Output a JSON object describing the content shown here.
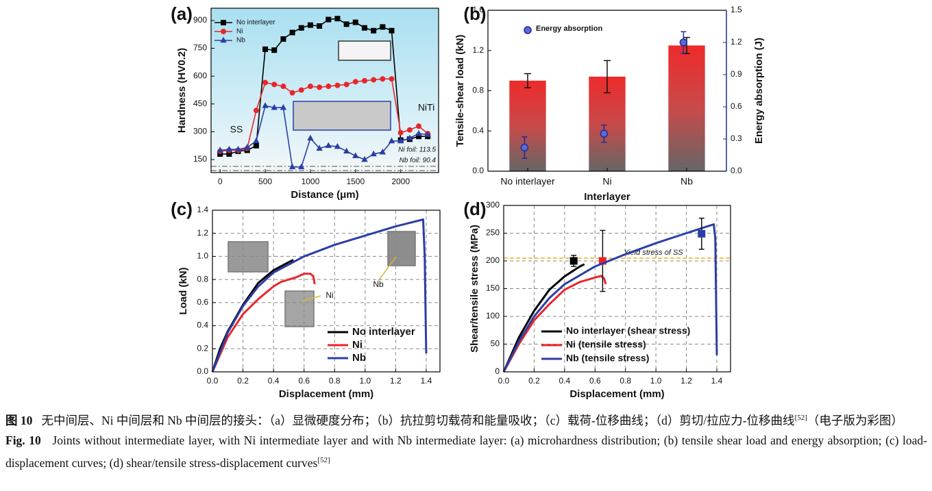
{
  "chart_data": [
    {
      "type": "line",
      "panel_label": "(a)",
      "xlabel": "Distance (μm)",
      "ylabel": "Hardness (HV0.2)",
      "x": [
        0,
        100,
        200,
        300,
        400,
        500,
        600,
        700,
        800,
        900,
        1000,
        1100,
        1200,
        1300,
        1400,
        1500,
        1600,
        1700,
        1800,
        1900,
        2000,
        2100,
        2200,
        2300
      ],
      "series": [
        {
          "name": "No interlayer",
          "color": "#000000",
          "marker": "square",
          "values": [
            180,
            180,
            195,
            200,
            225,
            745,
            740,
            800,
            835,
            860,
            875,
            870,
            905,
            910,
            880,
            890,
            860,
            845,
            865,
            845,
            255,
            260,
            275,
            275
          ]
        },
        {
          "name": "Ni",
          "color": "#e8262a",
          "marker": "circle",
          "values": [
            195,
            200,
            200,
            210,
            415,
            565,
            555,
            545,
            510,
            525,
            545,
            540,
            545,
            550,
            555,
            570,
            575,
            580,
            585,
            585,
            295,
            310,
            330,
            290
          ]
        },
        {
          "name": "Nb",
          "color": "#2a3ea8",
          "marker": "triangle",
          "values": [
            200,
            205,
            205,
            215,
            250,
            440,
            430,
            430,
            110,
            110,
            265,
            210,
            225,
            220,
            195,
            170,
            150,
            180,
            190,
            250,
            250,
            265,
            290,
            285
          ]
        }
      ],
      "xlim": [
        -100,
        2420
      ],
      "ylim": [
        80,
        966
      ],
      "xticks": [
        0,
        500,
        1000,
        1500,
        2000
      ],
      "yticks": [
        150,
        300,
        450,
        600,
        750,
        900
      ],
      "annotations": [
        "SS",
        "NiTi"
      ],
      "reference_lines": [
        {
          "label": "Ni foil: 113.5",
          "value": 113.5
        },
        {
          "label": "Nb foil: 90.4",
          "value": 90.4
        }
      ],
      "legend": "upper left"
    },
    {
      "type": "bar",
      "panel_label": "(b)",
      "xlabel": "Interlayer",
      "ylabel": "Tensile-shear load (kN)",
      "y2label": "Energy absorption (J)",
      "categories": [
        "No interlayer",
        "Ni",
        "Nb"
      ],
      "series": [
        {
          "color": "#e8262a",
          "values": [
            0.9,
            0.94,
            1.25
          ],
          "errors": [
            0.07,
            0.16,
            0.08
          ]
        },
        {
          "name": "Energy absorption",
          "color": "#1f2a9c",
          "axis": "y2",
          "values": [
            0.22,
            0.35,
            1.2
          ],
          "errors": [
            0.1,
            0.08,
            0.1
          ]
        }
      ],
      "ylim": [
        0,
        1.6
      ],
      "yticks": [
        {
          "value": 0,
          "label": "0.0"
        },
        0.4,
        0.8,
        1.2,
        1.6
      ],
      "y2lim": [
        0,
        1.5
      ],
      "y2ticks": [
        {
          "value": 0,
          "label": "0.0"
        },
        0.3,
        0.6,
        0.9,
        1.2,
        1.5
      ],
      "legend": "upper left"
    },
    {
      "type": "line",
      "panel_label": "(c)",
      "xlabel": "Displacement (mm)",
      "ylabel": "Load (kN)",
      "series": [
        {
          "name": "No interlayer",
          "color": "#000000",
          "x": [
            0,
            0.05,
            0.1,
            0.2,
            0.3,
            0.4,
            0.5,
            0.53
          ],
          "values": [
            0,
            0.2,
            0.35,
            0.58,
            0.77,
            0.88,
            0.95,
            0.97
          ]
        },
        {
          "name": "Ni",
          "color": "#e8262a",
          "x": [
            0,
            0.1,
            0.2,
            0.3,
            0.4,
            0.45,
            0.5,
            0.55,
            0.6,
            0.64,
            0.66,
            0.67
          ],
          "values": [
            0,
            0.3,
            0.5,
            0.63,
            0.74,
            0.78,
            0.8,
            0.82,
            0.85,
            0.85,
            0.83,
            0.76
          ]
        },
        {
          "name": "Nb",
          "color": "#2a3ea8",
          "x": [
            0,
            0.1,
            0.2,
            0.3,
            0.4,
            0.6,
            0.8,
            1.0,
            1.2,
            1.38,
            1.39,
            1.4
          ],
          "values": [
            0,
            0.34,
            0.57,
            0.74,
            0.86,
            1.0,
            1.1,
            1.18,
            1.26,
            1.32,
            1.0,
            0.16
          ]
        }
      ],
      "xlim": [
        0,
        1.49
      ],
      "ylim": [
        0,
        1.4
      ],
      "xticks": [
        {
          "value": 0,
          "label": "0.0"
        },
        0.2,
        0.4,
        0.6,
        0.8,
        {
          "value": 1,
          "label": "1.0"
        },
        1.2,
        1.4
      ],
      "yticks": [
        {
          "value": 0,
          "label": "0.0"
        },
        0.2,
        0.4,
        0.6,
        0.8,
        {
          "value": 1,
          "label": "1.0"
        },
        1.2,
        1.4
      ],
      "annotations": [
        "Ni",
        "Nb"
      ],
      "grid": true,
      "legend": "lower right"
    },
    {
      "type": "line",
      "panel_label": "(d)",
      "xlabel": "Displacement (mm)",
      "ylabel": "Shear/tensile stress (MPa)",
      "series": [
        {
          "name": "No interlayer (shear stress)",
          "color": "#000000",
          "x": [
            0,
            0.1,
            0.2,
            0.3,
            0.4,
            0.5,
            0.53
          ],
          "values": [
            0,
            62,
            110,
            148,
            172,
            190,
            194
          ],
          "point": {
            "x": 0.46,
            "value": 200,
            "error": 10
          }
        },
        {
          "name": "Ni (tensile stress)",
          "color": "#e8262a",
          "x": [
            0,
            0.1,
            0.2,
            0.3,
            0.4,
            0.5,
            0.6,
            0.64,
            0.66,
            0.67
          ],
          "values": [
            0,
            50,
            93,
            122,
            148,
            162,
            170,
            173,
            168,
            158
          ],
          "point": {
            "x": 0.65,
            "value": 200,
            "error": 55
          }
        },
        {
          "name": "Nb (tensile stress)",
          "color": "#2a3ea8",
          "x": [
            0,
            0.1,
            0.2,
            0.3,
            0.4,
            0.6,
            0.8,
            1.0,
            1.2,
            1.38,
            1.39,
            1.4
          ],
          "values": [
            0,
            55,
            100,
            133,
            158,
            190,
            212,
            232,
            250,
            266,
            240,
            30
          ],
          "point": {
            "x": 1.3,
            "value": 249,
            "error": 28
          }
        }
      ],
      "xlim": [
        0,
        1.49
      ],
      "ylim": [
        0,
        300
      ],
      "xticks": [
        {
          "value": 0,
          "label": "0.0"
        },
        0.2,
        0.4,
        0.6,
        0.8,
        {
          "value": 1,
          "label": "1.0"
        },
        1.2,
        1.4
      ],
      "yticks": [
        0,
        50,
        100,
        150,
        200,
        250,
        300
      ],
      "reference_lines": [
        {
          "label": "Yield stress of SS",
          "value": 205
        }
      ],
      "grid": true,
      "legend": "lower right"
    }
  ],
  "caption": {
    "zh_label": "图 10",
    "zh_text": "无中间层、Ni 中间层和 Nb 中间层的接头：（a）显微硬度分布；（b）抗拉剪切载荷和能量吸收；（c）载荷-位移曲线；（d）剪切/拉应力-位移曲线",
    "zh_ref": "[52]",
    "zh_note": "（电子版为彩图）",
    "en_label": "Fig. 10",
    "en_text": "Joints without intermediate layer, with Ni intermediate layer and with Nb intermediate layer: (a) microhardness distribution; (b) tensile shear load and energy absorption; (c) load-displacement curves; (d) shear/tensile stress-displacement curves",
    "en_ref": "[52]"
  }
}
